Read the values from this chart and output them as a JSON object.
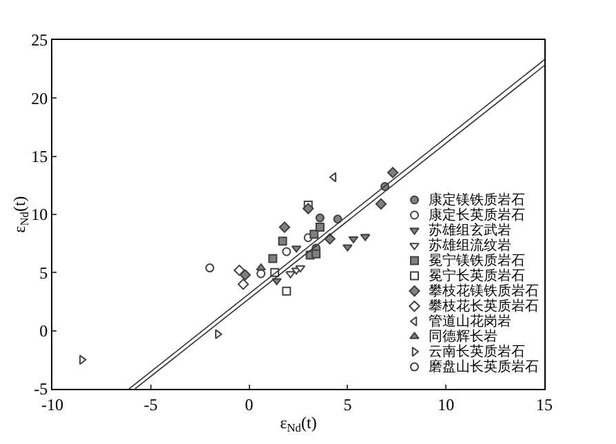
{
  "chart_data": {
    "type": "scatter",
    "xlabel": "ε$_{Nd}$(t)",
    "ylabel": "ε$_{Nd}$(t)",
    "xlim": [
      -10,
      15
    ],
    "ylim": [
      -5,
      25
    ],
    "xticks": [
      -10,
      -5,
      0,
      5,
      10,
      15
    ],
    "yticks": [
      -5,
      0,
      5,
      10,
      15,
      20,
      25
    ],
    "legend": "bottom right",
    "series": [
      {
        "name": "康定镁铁质岩石",
        "marker": "circle",
        "color": "#808080",
        "x": [
          3.6,
          4.5,
          3.4,
          6.9
        ],
        "values": [
          9.7,
          9.6,
          7.1,
          12.4
        ]
      },
      {
        "name": "康定长英质岩石",
        "marker": "circle",
        "color": "#ffffff",
        "x": [
          0.6,
          1.9,
          3.0
        ],
        "values": [
          4.9,
          6.8,
          8.0
        ]
      },
      {
        "name": "苏雄组玄武岩",
        "marker": "triangle-down",
        "color": "#808080",
        "x": [
          1.4,
          2.4,
          5.0,
          5.3,
          5.9
        ],
        "values": [
          4.3,
          7.1,
          7.2,
          7.9,
          8.1
        ]
      },
      {
        "name": "苏雄组流纹岩",
        "marker": "triangle-down",
        "color": "#ffffff",
        "x": [
          2.1,
          2.4,
          2.6
        ],
        "values": [
          4.9,
          5.2,
          5.4
        ]
      },
      {
        "name": "冕宁镁铁质岩石",
        "marker": "square",
        "color": "#808080",
        "x": [
          1.2,
          1.7,
          3.3,
          3.6,
          3.1,
          3.4
        ],
        "values": [
          6.2,
          7.7,
          8.3,
          8.9,
          6.5,
          6.6
        ]
      },
      {
        "name": "冕宁长英质岩石",
        "marker": "square",
        "color": "#ffffff",
        "x": [
          1.3,
          1.9,
          3.0
        ],
        "values": [
          5.0,
          3.4,
          10.8
        ]
      },
      {
        "name": "攀枝花镁铁质岩石",
        "marker": "diamond",
        "color": "#808080",
        "x": [
          -0.2,
          1.8,
          3.0,
          4.1,
          6.7,
          7.3
        ],
        "values": [
          4.8,
          8.9,
          10.5,
          7.9,
          10.9,
          13.6
        ]
      },
      {
        "name": "攀枝花长英质岩石",
        "marker": "diamond",
        "color": "#ffffff",
        "x": [
          -0.5,
          -0.3
        ],
        "values": [
          5.2,
          4.0
        ]
      },
      {
        "name": "管道山花岗岩",
        "marker": "triangle-left",
        "color": "#ffffff",
        "x": [
          4.3
        ],
        "values": [
          13.2
        ]
      },
      {
        "name": "同德辉长岩",
        "marker": "triangle-up",
        "color": "#808080",
        "x": [
          0.6
        ],
        "values": [
          5.4
        ]
      },
      {
        "name": "云南长英质岩石",
        "marker": "triangle-right",
        "color": "#ffffff",
        "x": [
          -8.5,
          -1.6
        ],
        "values": [
          -2.5,
          -0.3
        ]
      },
      {
        "name": "磨盘山长英质岩石",
        "marker": "circle",
        "color": "#ffffff",
        "x": [
          -2.0
        ],
        "values": [
          5.4
        ]
      },
      {
        "type": "line",
        "color": "#333333",
        "x": [
          -6.1,
          15
        ],
        "values": [
          -5,
          23.3
        ]
      },
      {
        "type": "line",
        "color": "#333333",
        "x": [
          -5.8,
          15
        ],
        "values": [
          -5,
          22.8
        ]
      }
    ]
  }
}
